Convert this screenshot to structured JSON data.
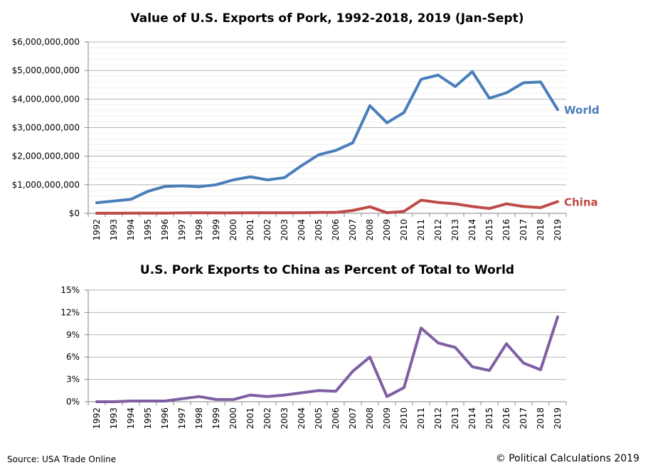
{
  "chart_data": [
    {
      "type": "line",
      "title": "Value of U.S. Exports of Pork, 1992-2018, 2019 (Jan-Sept)",
      "x": [
        "1992",
        "1993",
        "1994",
        "1995",
        "1996",
        "1997",
        "1998",
        "1999",
        "2000",
        "2001",
        "2002",
        "2003",
        "2004",
        "2005",
        "2006",
        "2007",
        "2008",
        "2009",
        "2010",
        "2011",
        "2012",
        "2013",
        "2014",
        "2015",
        "2016",
        "2017",
        "2018",
        "2019"
      ],
      "ylim": [
        0,
        6000000000
      ],
      "yticks": [
        "$0",
        "$1,000,000,000",
        "$2,000,000,000",
        "$3,000,000,000",
        "$4,000,000,000",
        "$5,000,000,000",
        "$6,000,000,000"
      ],
      "grid": true,
      "series": [
        {
          "name": "World",
          "color": "#4a7ebb",
          "values": [
            370000000,
            430000000,
            490000000,
            770000000,
            940000000,
            960000000,
            930000000,
            1000000000,
            1170000000,
            1280000000,
            1170000000,
            1250000000,
            1670000000,
            2050000000,
            2200000000,
            2470000000,
            3770000000,
            3170000000,
            3530000000,
            4690000000,
            4840000000,
            4440000000,
            4960000000,
            4030000000,
            4220000000,
            4570000000,
            4600000000,
            3630000000
          ]
        },
        {
          "name": "China",
          "color": "#be4b48",
          "values": [
            2000000,
            2000000,
            4000000,
            5000000,
            6000000,
            15000000,
            20000000,
            15000000,
            15000000,
            20000000,
            18000000,
            20000000,
            20000000,
            30000000,
            30000000,
            100000000,
            230000000,
            20000000,
            70000000,
            460000000,
            380000000,
            330000000,
            240000000,
            170000000,
            330000000,
            240000000,
            200000000,
            410000000
          ]
        }
      ]
    },
    {
      "type": "line",
      "title": "U.S. Pork Exports to China as Percent of Total to World",
      "x": [
        "1992",
        "1993",
        "1994",
        "1995",
        "1996",
        "1997",
        "1998",
        "1999",
        "2000",
        "2001",
        "2002",
        "2003",
        "2004",
        "2005",
        "2006",
        "2007",
        "2008",
        "2009",
        "2010",
        "2011",
        "2012",
        "2013",
        "2014",
        "2015",
        "2016",
        "2017",
        "2018",
        "2019"
      ],
      "ylim": [
        0,
        15
      ],
      "yticks": [
        "0%",
        "3%",
        "6%",
        "9%",
        "12%",
        "15%"
      ],
      "grid": true,
      "series": [
        {
          "color": "#7f5fa3",
          "values": [
            0.0,
            0.0,
            0.1,
            0.1,
            0.1,
            0.4,
            0.7,
            0.3,
            0.3,
            0.9,
            0.7,
            0.9,
            1.2,
            1.5,
            1.4,
            4.1,
            6.0,
            0.7,
            1.9,
            9.9,
            7.9,
            7.3,
            4.7,
            4.2,
            7.8,
            5.2,
            4.3,
            11.4
          ]
        }
      ]
    }
  ],
  "footer": {
    "source": "Source: USA Trade Online",
    "copyright": "© Political Calculations 2019"
  }
}
